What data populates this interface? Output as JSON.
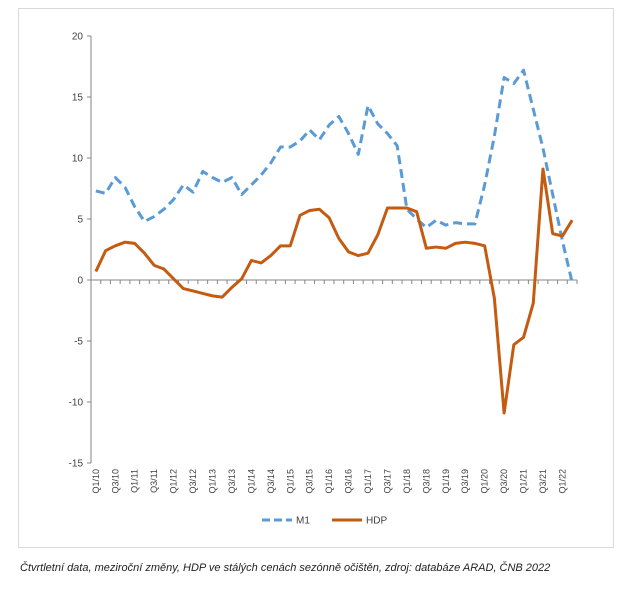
{
  "chart_data": {
    "type": "line",
    "title": "",
    "xlabel": "",
    "ylabel": "",
    "ylim": [
      -15,
      20
    ],
    "yticks": [
      -15,
      -10,
      -5,
      0,
      5,
      10,
      15,
      20
    ],
    "grid": false,
    "legend_position": "bottom",
    "x": [
      "Q1/10",
      "Q2/10",
      "Q3/10",
      "Q4/10",
      "Q1/11",
      "Q2/11",
      "Q3/11",
      "Q4/11",
      "Q1/12",
      "Q2/12",
      "Q3/12",
      "Q4/12",
      "Q1/13",
      "Q2/13",
      "Q3/13",
      "Q4/13",
      "Q1/14",
      "Q2/14",
      "Q3/14",
      "Q4/14",
      "Q1/15",
      "Q2/15",
      "Q3/15",
      "Q4/15",
      "Q1/16",
      "Q2/16",
      "Q3/16",
      "Q4/16",
      "Q1/17",
      "Q2/17",
      "Q3/17",
      "Q4/17",
      "Q1/18",
      "Q2/18",
      "Q3/18",
      "Q4/18",
      "Q1/19",
      "Q2/19",
      "Q3/19",
      "Q4/19",
      "Q1/20",
      "Q2/20",
      "Q3/20",
      "Q4/20",
      "Q1/21",
      "Q2/21",
      "Q3/21",
      "Q4/21",
      "Q1/22",
      "Q2/22"
    ],
    "x_tick_labels": [
      "Q1/10",
      "Q3/10",
      "Q1/11",
      "Q3/11",
      "Q1/12",
      "Q3/12",
      "Q1/13",
      "Q3/13",
      "Q1/14",
      "Q3/14",
      "Q1/15",
      "Q3/15",
      "Q1/16",
      "Q3/16",
      "Q1/17",
      "Q3/17",
      "Q1/18",
      "Q3/18",
      "Q1/19",
      "Q3/19",
      "Q1/20",
      "Q3/20",
      "Q1/21",
      "Q3/21",
      "Q1/22"
    ],
    "series": [
      {
        "name": "M1",
        "color": "#5b9bd5",
        "style": "dashed",
        "values": [
          7.3,
          7.1,
          8.4,
          7.6,
          6.0,
          4.8,
          5.2,
          5.8,
          6.6,
          7.8,
          7.2,
          8.9,
          8.4,
          8.0,
          8.4,
          7.0,
          7.8,
          8.6,
          9.6,
          10.9,
          10.9,
          11.4,
          12.3,
          11.5,
          12.7,
          13.4,
          12.0,
          10.3,
          14.3,
          12.8,
          12.0,
          11.0,
          5.8,
          5.0,
          4.3,
          4.9,
          4.5,
          4.7,
          4.6,
          4.6,
          7.8,
          11.8,
          16.6,
          16.1,
          17.2,
          14.0,
          10.8,
          7.0,
          3.2,
          -0.2
        ]
      },
      {
        "name": "HDP",
        "color": "#c55a11",
        "style": "solid",
        "values": [
          0.7,
          2.4,
          2.8,
          3.1,
          3.0,
          2.2,
          1.2,
          0.9,
          0.1,
          -0.7,
          -0.9,
          -1.1,
          -1.3,
          -1.4,
          -0.6,
          0.1,
          1.6,
          1.4,
          2.0,
          2.8,
          2.8,
          5.3,
          5.7,
          5.8,
          5.1,
          3.4,
          2.3,
          2.0,
          2.2,
          3.7,
          5.9,
          5.9,
          5.9,
          5.6,
          2.6,
          2.7,
          2.6,
          3.0,
          3.1,
          3.0,
          2.8,
          -1.5,
          -10.9,
          -5.3,
          -4.7,
          -1.9,
          9.1,
          3.8,
          3.6,
          4.9
        ]
      }
    ]
  },
  "caption": "Čtvrtletní data, meziroční změny, HDP ve stálých cenách sezónně očištěn, zdroj: databáze ARAD, ČNB 2022"
}
